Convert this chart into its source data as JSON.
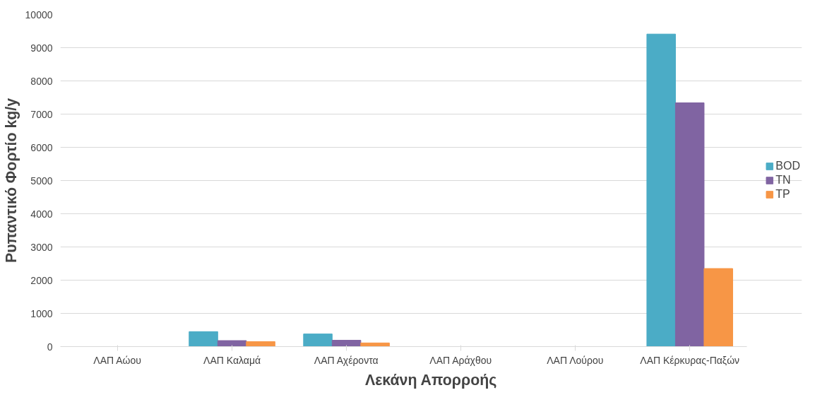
{
  "chart_data": {
    "type": "bar",
    "xlabel": "Λεκάνη Απορροής",
    "ylabel": "Ρυπαντικό Φορτίο kg/y",
    "categories": [
      "ΛΑΠ Αώου",
      "ΛΑΠ Καλαμά",
      "ΛΑΠ Αχέροντα",
      "ΛΑΠ Αράχθου",
      "ΛΑΠ Λούρου",
      "ΛΑΠ Κέρκυρας-Παξών"
    ],
    "series": [
      {
        "name": "BOD",
        "color": "#4bacc6",
        "values": [
          0,
          450,
          380,
          0,
          0,
          9410
        ]
      },
      {
        "name": "TN",
        "color": "#8064a2",
        "values": [
          0,
          180,
          190,
          0,
          0,
          7340
        ]
      },
      {
        "name": "TP",
        "color": "#f79646",
        "values": [
          0,
          150,
          110,
          0,
          0,
          2350
        ]
      }
    ],
    "ylim": [
      0,
      10000
    ],
    "yticks": [
      0,
      1000,
      2000,
      3000,
      4000,
      5000,
      6000,
      7000,
      8000,
      9000,
      10000
    ],
    "grid": "y",
    "legend": "right"
  }
}
